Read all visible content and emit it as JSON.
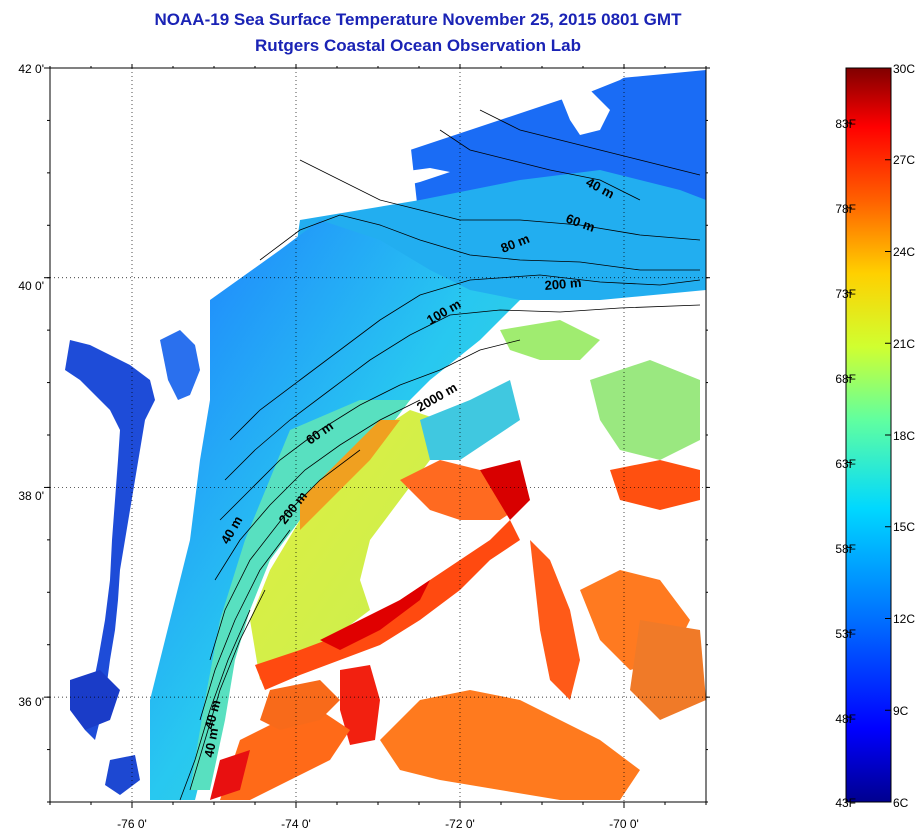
{
  "title": {
    "line1": "NOAA-19 Sea Surface Temperature November 25, 2015 0801 GMT",
    "line2": "Rutgers Coastal Ocean Observation Lab"
  },
  "map": {
    "lat_ticks": [
      {
        "label": "42 0'",
        "value": 42
      },
      {
        "label": "40 0'",
        "value": 40
      },
      {
        "label": "38 0'",
        "value": 38
      },
      {
        "label": "36 0'",
        "value": 36
      }
    ],
    "lon_ticks": [
      {
        "label": "-76 0'",
        "value": -76
      },
      {
        "label": "-74 0'",
        "value": -74
      },
      {
        "label": "-72 0'",
        "value": -72
      },
      {
        "label": "-70 0'",
        "value": -70
      }
    ],
    "lat_range": [
      35.0,
      42.0
    ],
    "lon_range": [
      -77.0,
      -69.0
    ],
    "grid": "dotted",
    "land_color": "#ffffff",
    "isobath_labels": [
      "40 m",
      "60 m",
      "80 m",
      "200 m",
      "100 m",
      "2000 m",
      "60 m",
      "40 m",
      "200 m",
      "40 m",
      "40 m"
    ]
  },
  "colorbar": {
    "fahrenheit_labels": [
      "83F",
      "78F",
      "73F",
      "68F",
      "63F",
      "58F",
      "53F",
      "48F",
      "43F"
    ],
    "celsius_labels": [
      "30C",
      "27C",
      "24C",
      "21C",
      "18C",
      "15C",
      "12C",
      "9C",
      "6C"
    ],
    "colormap": [
      "#00008f",
      "#0000ff",
      "#0070ff",
      "#00d8ff",
      "#60ffa0",
      "#d0ff30",
      "#ffd000",
      "#ff6000",
      "#ff0000",
      "#800000"
    ]
  }
}
